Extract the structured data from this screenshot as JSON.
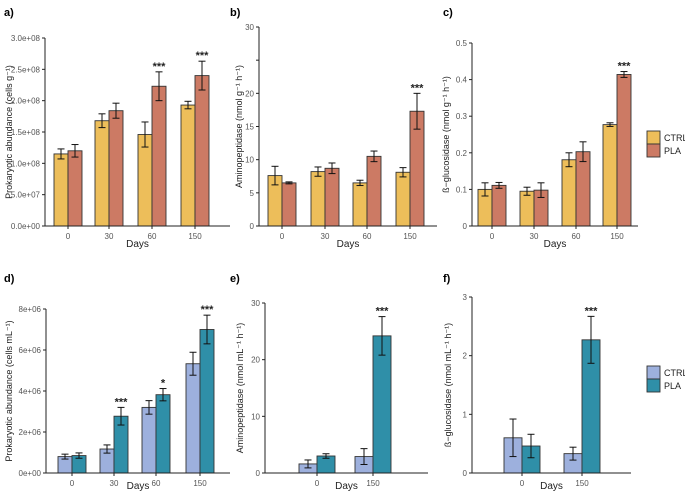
{
  "legends": [
    {
      "entries": [
        "CTRL",
        "PLA"
      ],
      "colors": [
        "#EDBE5A",
        "#CC7A64"
      ]
    },
    {
      "entries": [
        "CTRL",
        "PLA"
      ],
      "colors": [
        "#9DB0DD",
        "#2F8FA8"
      ]
    }
  ],
  "chart_data": [
    {
      "panel": "a)",
      "type": "bar",
      "xlabel": "Days",
      "ylabel": "Prokaryotic abundance (cells g⁻¹)",
      "categories": [
        "0",
        "30",
        "60",
        "150"
      ],
      "ylim": [
        0,
        300000000
      ],
      "yticks": [
        0,
        50000000,
        100000000,
        150000000,
        200000000,
        250000000,
        300000000
      ],
      "ytick_labels": [
        "0.0e+00",
        "5.0e+07",
        "1.0e+08",
        "1.5e+08",
        "2.0e+08",
        "2.5e+08",
        "3.0e+08"
      ],
      "series": [
        {
          "name": "CTRL",
          "color": "#EDBE5A",
          "values": [
            115000000,
            168000000,
            146000000,
            193000000
          ],
          "errors": [
            8000000,
            11000000,
            20000000,
            6000000
          ]
        },
        {
          "name": "PLA",
          "color": "#CC7A64",
          "values": [
            120000000,
            184000000,
            223000000,
            240000000
          ],
          "errors": [
            10000000,
            12000000,
            23000000,
            23000000
          ]
        }
      ],
      "annotations": [
        "",
        "",
        "***",
        "***"
      ],
      "grid": false
    },
    {
      "panel": "b)",
      "type": "bar",
      "xlabel": "Days",
      "ylabel": "Aminopeptidase (nmol g⁻¹ h⁻¹)",
      "categories": [
        "0",
        "30",
        "60",
        "150"
      ],
      "ylim": [
        0,
        30
      ],
      "yticks": [
        0,
        5,
        10,
        15,
        20,
        25,
        30
      ],
      "ytick_labels": [
        "0",
        "5",
        "10",
        "15",
        "20",
        "",
        "30"
      ],
      "series": [
        {
          "name": "CTRL",
          "color": "#EDBE5A",
          "values": [
            7.6,
            8.2,
            6.5,
            8.1
          ],
          "errors": [
            1.4,
            0.7,
            0.4,
            0.7
          ]
        },
        {
          "name": "PLA",
          "color": "#CC7A64",
          "values": [
            6.5,
            8.7,
            10.5,
            17.3
          ],
          "errors": [
            0.15,
            0.8,
            0.8,
            2.7
          ]
        }
      ],
      "annotations": [
        "",
        "",
        "",
        "***"
      ],
      "grid": false
    },
    {
      "panel": "c)",
      "type": "bar",
      "xlabel": "Days",
      "ylabel": "ß−glucosidase (nmol g⁻¹ h⁻¹)",
      "categories": [
        "0",
        "30",
        "60",
        "150"
      ],
      "ylim": [
        0,
        0.5
      ],
      "yticks": [
        0,
        0.1,
        0.2,
        0.3,
        0.4,
        0.5
      ],
      "ytick_labels": [
        "0",
        "0.1",
        "0.2",
        "0.3",
        "0.4",
        "0.5"
      ],
      "series": [
        {
          "name": "CTRL",
          "color": "#EDBE5A",
          "values": [
            0.1,
            0.095,
            0.181,
            0.277
          ],
          "errors": [
            0.018,
            0.011,
            0.019,
            0.005
          ]
        },
        {
          "name": "PLA",
          "color": "#CC7A64",
          "values": [
            0.111,
            0.098,
            0.203,
            0.414
          ],
          "errors": [
            0.008,
            0.02,
            0.027,
            0.008
          ]
        }
      ],
      "annotations": [
        "",
        "",
        "",
        "***"
      ],
      "grid": false,
      "legend": "right"
    },
    {
      "panel": "d)",
      "type": "bar",
      "xlabel": "Days",
      "ylabel": "Prokaryotic abundance (cells mL⁻¹)",
      "categories": [
        "0",
        "30",
        "60",
        "150"
      ],
      "ylim": [
        0,
        8000000
      ],
      "yticks": [
        0,
        2000000,
        4000000,
        6000000,
        8000000
      ],
      "ytick_labels": [
        "0e+00",
        "2e+06",
        "4e+06",
        "6e+06",
        "8e+06"
      ],
      "series": [
        {
          "name": "CTRL",
          "color": "#9DB0DD",
          "values": [
            800000,
            1170000,
            3200000,
            5330000
          ],
          "errors": [
            120000,
            200000,
            330000,
            560000
          ]
        },
        {
          "name": "PLA",
          "color": "#2F8FA8",
          "values": [
            850000,
            2770000,
            3820000,
            7000000
          ],
          "errors": [
            130000,
            430000,
            300000,
            700000
          ]
        }
      ],
      "annotations": [
        "",
        "***",
        "*",
        "***"
      ],
      "grid": false
    },
    {
      "panel": "e)",
      "type": "bar",
      "xlabel": "Days",
      "ylabel": "Aminopeptidase (nmol mL⁻¹ h⁻¹)",
      "categories": [
        "0",
        "150"
      ],
      "ylim": [
        0,
        30
      ],
      "yticks": [
        0,
        10,
        20,
        30
      ],
      "ytick_labels": [
        "0",
        "10",
        "20",
        "30"
      ],
      "series": [
        {
          "name": "CTRL",
          "color": "#9DB0DD",
          "values": [
            1.6,
            2.9
          ],
          "errors": [
            0.7,
            1.4
          ]
        },
        {
          "name": "PLA",
          "color": "#2F8FA8",
          "values": [
            3.0,
            24.2
          ],
          "errors": [
            0.4,
            3.4
          ]
        }
      ],
      "annotations": [
        "",
        "***"
      ],
      "grid": false
    },
    {
      "panel": "f)",
      "type": "bar",
      "xlabel": "Days",
      "ylabel": "ß−glucosidase (nmol mL⁻¹ h⁻¹)",
      "categories": [
        "0",
        "150"
      ],
      "ylim": [
        0,
        3
      ],
      "yticks": [
        0,
        1,
        2,
        3
      ],
      "ytick_labels": [
        "0",
        "1",
        "2",
        "3"
      ],
      "series": [
        {
          "name": "CTRL",
          "color": "#9DB0DD",
          "values": [
            0.6,
            0.33
          ],
          "errors": [
            0.32,
            0.11
          ]
        },
        {
          "name": "PLA",
          "color": "#2F8FA8",
          "values": [
            0.46,
            2.27
          ],
          "errors": [
            0.2,
            0.4
          ]
        }
      ],
      "annotations": [
        "",
        "***"
      ],
      "grid": false,
      "legend": "right"
    }
  ]
}
